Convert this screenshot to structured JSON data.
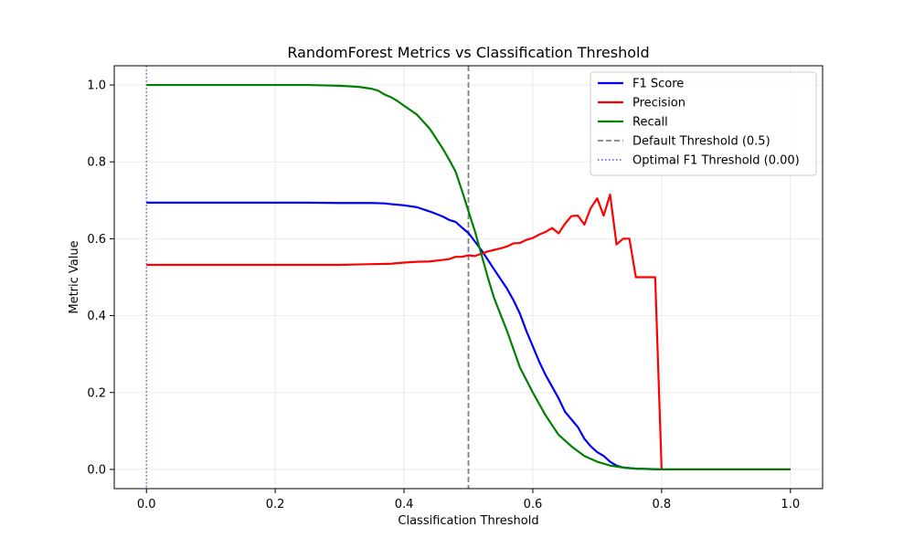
{
  "chart_data": {
    "type": "line",
    "title": "RandomForest Metrics vs Classification Threshold",
    "xlabel": "Classification Threshold",
    "ylabel": "Metric Value",
    "xlim": [
      -0.05,
      1.05
    ],
    "ylim": [
      -0.05,
      1.05
    ],
    "xticks": [
      0.0,
      0.2,
      0.4,
      0.6,
      0.8,
      1.0
    ],
    "yticks": [
      0.0,
      0.2,
      0.4,
      0.6,
      0.8,
      1.0
    ],
    "xtick_labels": [
      "0.0",
      "0.2",
      "0.4",
      "0.6",
      "0.8",
      "1.0"
    ],
    "ytick_labels": [
      "0.0",
      "0.2",
      "0.4",
      "0.6",
      "0.8",
      "1.0"
    ],
    "grid": true,
    "legend_position": "top-right",
    "series": [
      {
        "name": "F1 Score",
        "color": "#0000ff",
        "style": "solid",
        "x": [
          0.0,
          0.05,
          0.1,
          0.15,
          0.2,
          0.25,
          0.3,
          0.35,
          0.37,
          0.38,
          0.4,
          0.42,
          0.44,
          0.46,
          0.47,
          0.48,
          0.49,
          0.5,
          0.51,
          0.52,
          0.54,
          0.56,
          0.57,
          0.58,
          0.59,
          0.6,
          0.61,
          0.62,
          0.63,
          0.64,
          0.65,
          0.66,
          0.67,
          0.68,
          0.69,
          0.7,
          0.71,
          0.72,
          0.73,
          0.74,
          0.76,
          0.78,
          0.8,
          0.9,
          1.0
        ],
        "y": [
          0.694,
          0.694,
          0.694,
          0.694,
          0.694,
          0.694,
          0.693,
          0.693,
          0.692,
          0.69,
          0.687,
          0.682,
          0.671,
          0.658,
          0.649,
          0.644,
          0.629,
          0.615,
          0.593,
          0.571,
          0.52,
          0.47,
          0.44,
          0.405,
          0.36,
          0.32,
          0.28,
          0.245,
          0.215,
          0.185,
          0.15,
          0.13,
          0.11,
          0.08,
          0.06,
          0.045,
          0.035,
          0.02,
          0.01,
          0.005,
          0.002,
          0.001,
          0.0,
          0.0,
          0.0
        ]
      },
      {
        "name": "Precision",
        "color": "#ff0000",
        "style": "solid",
        "x": [
          0.0,
          0.1,
          0.2,
          0.3,
          0.35,
          0.38,
          0.4,
          0.42,
          0.44,
          0.46,
          0.47,
          0.48,
          0.49,
          0.5,
          0.51,
          0.52,
          0.53,
          0.54,
          0.55,
          0.56,
          0.57,
          0.58,
          0.59,
          0.6,
          0.61,
          0.62,
          0.63,
          0.64,
          0.65,
          0.66,
          0.67,
          0.68,
          0.69,
          0.7,
          0.71,
          0.72,
          0.73,
          0.74,
          0.75,
          0.76,
          0.77,
          0.78,
          0.79,
          0.8,
          0.9,
          1.0
        ],
        "y": [
          0.532,
          0.532,
          0.532,
          0.532,
          0.534,
          0.535,
          0.538,
          0.54,
          0.541,
          0.545,
          0.547,
          0.553,
          0.553,
          0.557,
          0.555,
          0.561,
          0.567,
          0.571,
          0.575,
          0.58,
          0.588,
          0.589,
          0.597,
          0.602,
          0.611,
          0.618,
          0.628,
          0.614,
          0.639,
          0.659,
          0.66,
          0.637,
          0.68,
          0.705,
          0.66,
          0.715,
          0.585,
          0.6,
          0.6,
          0.5,
          0.5,
          0.5,
          0.5,
          0.0,
          0.0,
          0.0
        ]
      },
      {
        "name": "Recall",
        "color": "#008000",
        "style": "solid",
        "x": [
          0.0,
          0.1,
          0.2,
          0.25,
          0.3,
          0.33,
          0.35,
          0.36,
          0.37,
          0.38,
          0.39,
          0.4,
          0.42,
          0.44,
          0.46,
          0.47,
          0.48,
          0.49,
          0.5,
          0.51,
          0.52,
          0.53,
          0.54,
          0.56,
          0.58,
          0.6,
          0.62,
          0.64,
          0.66,
          0.68,
          0.7,
          0.72,
          0.74,
          0.76,
          0.78,
          0.8,
          0.9,
          1.0
        ],
        "y": [
          1.0,
          1.0,
          1.0,
          1.0,
          0.998,
          0.995,
          0.99,
          0.985,
          0.975,
          0.968,
          0.958,
          0.946,
          0.923,
          0.886,
          0.835,
          0.806,
          0.775,
          0.725,
          0.672,
          0.62,
          0.56,
          0.5,
          0.445,
          0.36,
          0.265,
          0.2,
          0.14,
          0.09,
          0.06,
          0.035,
          0.02,
          0.01,
          0.005,
          0.002,
          0.001,
          0.0,
          0.0,
          0.0
        ]
      },
      {
        "name": "Default Threshold (0.5)",
        "color": "#808080",
        "style": "dashed",
        "vline_x": 0.5
      },
      {
        "name": "Optimal F1 Threshold (0.00)",
        "color": "#6666ff",
        "style": "dotted",
        "vline_x": 0.0
      }
    ]
  }
}
